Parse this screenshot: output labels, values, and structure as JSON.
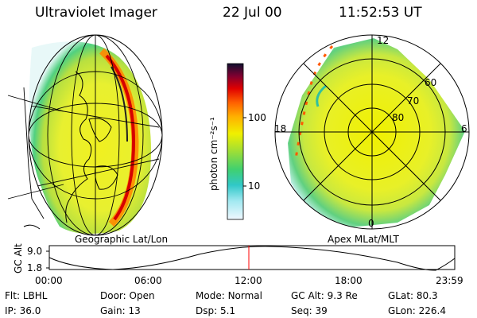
{
  "header": {
    "instrument": "Ultraviolet Imager",
    "date": "22 Jul 00",
    "time": "11:52:53 UT"
  },
  "colors": {
    "accent_marker": "#ff0000",
    "aurora_peak": "#d60000"
  },
  "left_map": {
    "caption": "Geographic Lat/Lon"
  },
  "colorbar": {
    "label": "photon cm⁻²s⁻¹",
    "ticks": [
      "100",
      "10"
    ],
    "scale": "log"
  },
  "polar_plot": {
    "caption": "Apex MLat/MLT",
    "mlt_labels": {
      "top": "12",
      "left": "18",
      "right": "6",
      "bottom": "0"
    },
    "lat_labels": [
      "60",
      "70",
      "80"
    ]
  },
  "altitude_plot": {
    "ylabel": "GC Alt",
    "yticks": [
      "9.0",
      "1.8"
    ],
    "xticks": [
      "00:00",
      "06:00",
      "12:00",
      "18:00",
      "23:59"
    ],
    "current_time_marker": "12:00"
  },
  "info_rows": [
    [
      {
        "label": "Flt:",
        "value": "LBHL"
      },
      {
        "label": "Door:",
        "value": "Open"
      },
      {
        "label": "Mode:",
        "value": "Normal"
      },
      {
        "label": "GC Alt:",
        "value": "9.3 Re"
      },
      {
        "label": "GLat:",
        "value": "80.3"
      }
    ],
    [
      {
        "label": "IP:",
        "value": "36.0"
      },
      {
        "label": "Gain:",
        "value": "13"
      },
      {
        "label": "Dsp:",
        "value": "5.1"
      },
      {
        "label": "Seq:",
        "value": "39"
      },
      {
        "label": "GLon:",
        "value": "226.4"
      }
    ]
  ]
}
